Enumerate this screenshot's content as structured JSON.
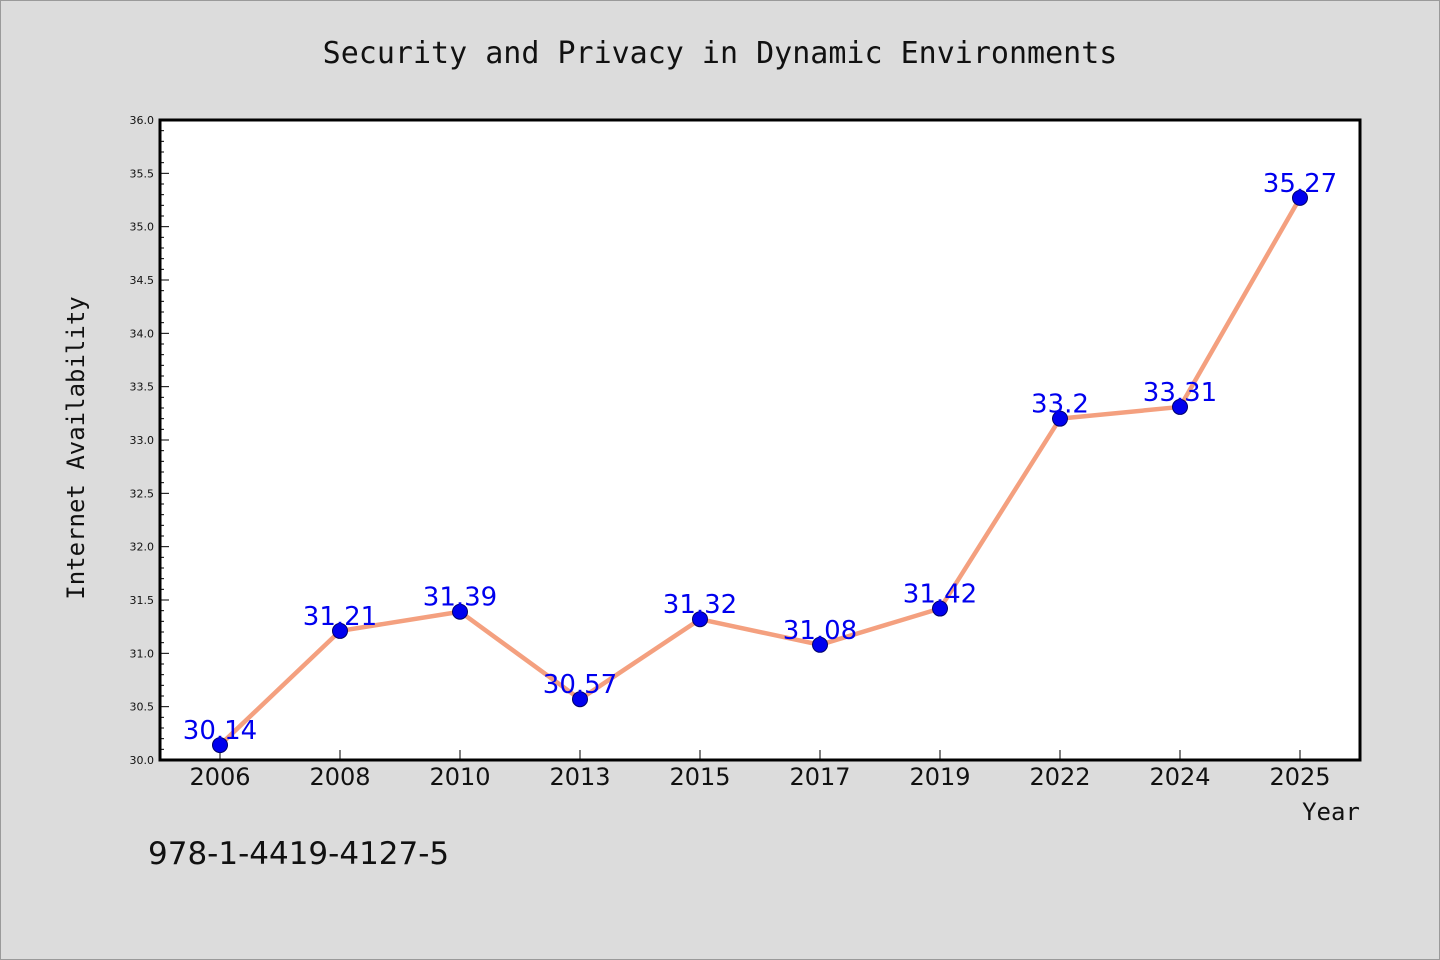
{
  "chart_data": {
    "type": "line",
    "title": "Security and Privacy in Dynamic Environments",
    "xlabel": "Year",
    "ylabel": "Internet Availability",
    "categories": [
      "2006",
      "2008",
      "2010",
      "2013",
      "2015",
      "2017",
      "2019",
      "2022",
      "2024",
      "2025"
    ],
    "series": [
      {
        "values": [
          30.14,
          31.21,
          31.39,
          30.57,
          31.32,
          31.08,
          31.42,
          33.2,
          33.31,
          35.27
        ],
        "labels": [
          "30.14",
          "31.21",
          "31.39",
          "30.57",
          "31.32",
          "31.08",
          "31.42",
          "33.2",
          "33.31",
          "35.27"
        ],
        "line_color": "#f4a07f",
        "marker_color": "#0000ee"
      }
    ],
    "ylim": [
      30.0,
      36.0
    ],
    "yticks": [
      "30.0",
      "30.5",
      "31.0",
      "31.5",
      "32.0",
      "32.5",
      "33.0",
      "33.5",
      "34.0",
      "34.5",
      "35.0",
      "35.5",
      "36.0"
    ],
    "grid": false,
    "legend": "none"
  },
  "footer": {
    "isbn": "978-1-4419-4127-5"
  },
  "colors": {
    "background": "#dcdcdc",
    "plot_background": "#ffffff"
  }
}
